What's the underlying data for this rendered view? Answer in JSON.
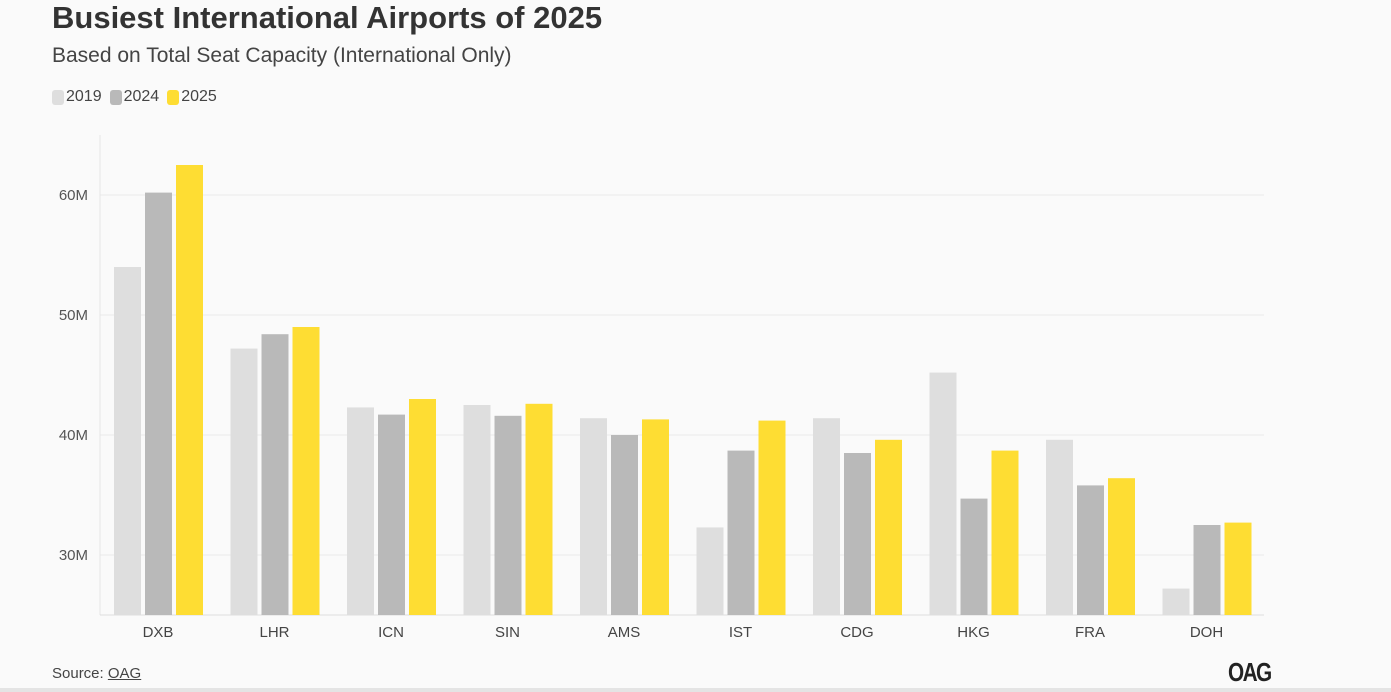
{
  "title": "Busiest International Airports of 2025",
  "subtitle": "Based on Total Seat Capacity (International Only)",
  "source_label": "Source:",
  "source_link": "OAG",
  "logo": "OAG",
  "chart_data": {
    "type": "bar",
    "title": "Busiest International Airports of 2025",
    "subtitle": "Based on Total Seat Capacity (International Only)",
    "categories": [
      "DXB",
      "LHR",
      "ICN",
      "SIN",
      "AMS",
      "IST",
      "CDG",
      "HKG",
      "FRA",
      "DOH"
    ],
    "series": [
      {
        "name": "2019",
        "color": "#dedede",
        "values": [
          54.0,
          47.2,
          42.3,
          42.5,
          41.4,
          32.3,
          41.4,
          45.2,
          39.6,
          27.2
        ]
      },
      {
        "name": "2024",
        "color": "#b9b9b9",
        "values": [
          60.2,
          48.4,
          41.7,
          41.6,
          40.0,
          38.7,
          38.5,
          34.7,
          35.8,
          32.5
        ]
      },
      {
        "name": "2025",
        "color": "#fedd33",
        "values": [
          62.5,
          49.0,
          43.0,
          42.6,
          41.3,
          41.2,
          39.6,
          38.7,
          36.4,
          32.7
        ]
      }
    ],
    "unit": "M",
    "ylim": [
      25,
      65
    ],
    "yticks": [
      30,
      40,
      50,
      60
    ],
    "ytick_labels": [
      "30M",
      "40M",
      "50M",
      "60M"
    ],
    "grid": true,
    "legend": "top-left",
    "xlabel": "",
    "ylabel": ""
  }
}
